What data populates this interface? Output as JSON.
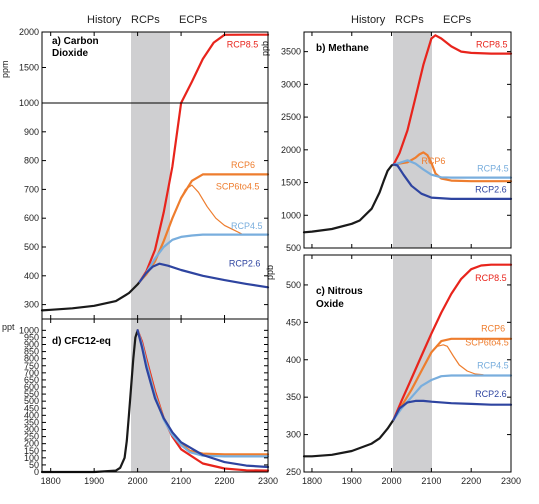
{
  "figure": {
    "period_labels": [
      "History",
      "RCPs",
      "ECPs"
    ],
    "x_ticks": [
      1800,
      1900,
      2000,
      2100,
      2200,
      2300
    ],
    "xlim": [
      1780,
      2300
    ],
    "rcp_band": [
      2000,
      2100
    ]
  },
  "chart_data": [
    {
      "type": "line",
      "id": "co2",
      "title": "a) Carbon Dioxide",
      "title_lines": [
        "a) Carbon",
        "Dioxide"
      ],
      "ylabel": "ppm",
      "broken_axis": true,
      "upper_segment": {
        "ylim": [
          1000,
          2000
        ],
        "ticks": [
          1000,
          1500,
          2000
        ]
      },
      "lower_segment": {
        "ylim": [
          250,
          1000
        ],
        "ticks": [
          300,
          400,
          500,
          600,
          700,
          800,
          900,
          1000
        ]
      },
      "xlim": [
        1780,
        2300
      ],
      "series": [
        {
          "name": "History",
          "color": "#1a1a1a",
          "labeled": false,
          "x": [
            1780,
            1800,
            1850,
            1900,
            1950,
            1980,
            2000,
            2005
          ],
          "y": [
            280,
            282,
            287,
            296,
            312,
            340,
            370,
            380
          ]
        },
        {
          "name": "RCP8.5",
          "color": "#e8241c",
          "x": [
            2005,
            2020,
            2040,
            2060,
            2080,
            2100,
            2125,
            2150,
            2175,
            2200,
            2250,
            2300
          ],
          "y": [
            380,
            415,
            490,
            620,
            780,
            1000,
            1300,
            1620,
            1850,
            1960,
            1962,
            1962
          ]
        },
        {
          "name": "RCP6",
          "color": "#ee7d2e",
          "x": [
            2005,
            2020,
            2040,
            2060,
            2080,
            2100,
            2125,
            2150,
            2200,
            2250,
            2300
          ],
          "y": [
            380,
            405,
            450,
            520,
            600,
            670,
            730,
            752,
            752,
            752,
            752
          ]
        },
        {
          "name": "SCP6to4.5",
          "color": "#ee7d2e",
          "x": [
            2100,
            2110,
            2125,
            2140,
            2160,
            2180,
            2200,
            2220,
            2240
          ],
          "y": [
            670,
            700,
            715,
            690,
            640,
            600,
            575,
            560,
            545
          ]
        },
        {
          "name": "RCP4.5",
          "color": "#79aedd",
          "x": [
            2005,
            2020,
            2040,
            2060,
            2080,
            2100,
            2125,
            2150,
            2200,
            2250,
            2300
          ],
          "y": [
            380,
            410,
            460,
            500,
            525,
            535,
            540,
            543,
            543,
            543,
            543
          ]
        },
        {
          "name": "RCP2.6",
          "color": "#2e44a0",
          "x": [
            2005,
            2020,
            2035,
            2050,
            2070,
            2100,
            2150,
            2200,
            2250,
            2300
          ],
          "y": [
            380,
            410,
            432,
            442,
            435,
            420,
            400,
            385,
            372,
            360
          ]
        }
      ],
      "labels": [
        {
          "text": "RCP8.5",
          "color": "#e8241c",
          "x": 2205,
          "y": 1780
        },
        {
          "text": "RCP6",
          "color": "#ee7d2e",
          "x": 2215,
          "y": 775
        },
        {
          "text": "SCP6to4.5",
          "color": "#ee7d2e",
          "x": 2180,
          "y": 700
        },
        {
          "text": "RCP4.5",
          "color": "#79aedd",
          "x": 2215,
          "y": 562
        },
        {
          "text": "RCP2.6",
          "color": "#2e44a0",
          "x": 2210,
          "y": 432
        }
      ]
    },
    {
      "type": "line",
      "id": "ch4",
      "title": "b) Methane",
      "title_lines": [
        "b) Methane"
      ],
      "ylabel": "ppb",
      "ylim": [
        500,
        3800
      ],
      "yticks": [
        500,
        1000,
        1500,
        2000,
        2500,
        3000,
        3500
      ],
      "xlim": [
        1780,
        2300
      ],
      "series": [
        {
          "name": "History",
          "color": "#1a1a1a",
          "labeled": false,
          "x": [
            1780,
            1800,
            1850,
            1900,
            1920,
            1950,
            1970,
            1980,
            1990,
            2000,
            2005
          ],
          "y": [
            740,
            750,
            790,
            870,
            920,
            1100,
            1350,
            1520,
            1680,
            1760,
            1775
          ]
        },
        {
          "name": "RCP8.5",
          "color": "#e8241c",
          "x": [
            2005,
            2020,
            2040,
            2060,
            2080,
            2100,
            2110,
            2125,
            2150,
            2175,
            2200,
            2250,
            2300
          ],
          "y": [
            1775,
            1950,
            2300,
            2800,
            3300,
            3700,
            3750,
            3700,
            3580,
            3500,
            3480,
            3470,
            3470
          ]
        },
        {
          "name": "RCP6",
          "color": "#ee7d2e",
          "x": [
            2005,
            2020,
            2040,
            2060,
            2070,
            2080,
            2090,
            2100,
            2110,
            2125,
            2150,
            2200,
            2250,
            2300
          ],
          "y": [
            1775,
            1790,
            1810,
            1880,
            1930,
            1960,
            1920,
            1800,
            1640,
            1560,
            1530,
            1520,
            1520,
            1520
          ]
        },
        {
          "name": "RCP4.5",
          "color": "#79aedd",
          "x": [
            2005,
            2020,
            2040,
            2060,
            2080,
            2100,
            2125,
            2150,
            2200,
            2250,
            2300
          ],
          "y": [
            1775,
            1800,
            1840,
            1790,
            1700,
            1620,
            1580,
            1575,
            1575,
            1575,
            1575
          ]
        },
        {
          "name": "RCP2.6",
          "color": "#2e44a0",
          "x": [
            2005,
            2015,
            2030,
            2050,
            2075,
            2100,
            2150,
            2200,
            2250,
            2300
          ],
          "y": [
            1775,
            1760,
            1620,
            1450,
            1330,
            1270,
            1250,
            1250,
            1250,
            1250
          ]
        }
      ],
      "labels": [
        {
          "text": "RCP8.5",
          "color": "#e8241c",
          "x": 2212,
          "y": 3560
        },
        {
          "text": "RCP6",
          "color": "#ee7d2e",
          "x": 2075,
          "y": 1780
        },
        {
          "text": "RCP4.5",
          "color": "#79aedd",
          "x": 2215,
          "y": 1665
        },
        {
          "text": "RCP2.6",
          "color": "#2e44a0",
          "x": 2210,
          "y": 1350
        }
      ]
    },
    {
      "type": "line",
      "id": "cfc12",
      "title": "d) CFC12-eq",
      "title_lines": [
        "d) CFC12-eq"
      ],
      "ylabel": "ppt",
      "ylim": [
        0,
        1080
      ],
      "yticks": [
        0,
        50,
        100,
        150,
        200,
        250,
        300,
        350,
        400,
        450,
        500,
        550,
        600,
        650,
        700,
        750,
        800,
        850,
        900,
        950,
        1000
      ],
      "xlim": [
        1780,
        2300
      ],
      "series": [
        {
          "name": "History",
          "color": "#1a1a1a",
          "labeled": false,
          "x": [
            1780,
            1900,
            1950,
            1960,
            1970,
            1975,
            1980,
            1985,
            1990,
            1995,
            2000
          ],
          "y": [
            0,
            0,
            10,
            30,
            100,
            220,
            400,
            600,
            800,
            950,
            1000
          ]
        },
        {
          "name": "RCP8.5",
          "color": "#e8241c",
          "x": [
            2000,
            2010,
            2020,
            2040,
            2060,
            2080,
            2100,
            2150,
            2200,
            2250,
            2300
          ],
          "y": [
            1000,
            920,
            800,
            570,
            380,
            250,
            160,
            60,
            25,
            12,
            10
          ]
        },
        {
          "name": "RCP6",
          "color": "#ee7d2e",
          "x": [
            2000,
            2010,
            2020,
            2040,
            2060,
            2080,
            2100,
            2120,
            2150,
            2200,
            2300
          ],
          "y": [
            1000,
            900,
            780,
            550,
            380,
            270,
            200,
            150,
            130,
            125,
            125
          ]
        },
        {
          "name": "RCP4.5",
          "color": "#79aedd",
          "x": [
            2000,
            2010,
            2020,
            2040,
            2060,
            2080,
            2100,
            2120,
            2150,
            2200,
            2300
          ],
          "y": [
            1000,
            900,
            770,
            540,
            370,
            260,
            190,
            140,
            115,
            110,
            110
          ]
        },
        {
          "name": "RCP2.6",
          "color": "#2e44a0",
          "x": [
            2000,
            2010,
            2020,
            2040,
            2060,
            2080,
            2100,
            2150,
            2200,
            2250,
            2300
          ],
          "y": [
            1000,
            880,
            740,
            520,
            380,
            280,
            210,
            120,
            70,
            45,
            35
          ]
        }
      ],
      "labels": []
    },
    {
      "type": "line",
      "id": "n2o",
      "title": "c) Nitrous Oxide",
      "title_lines": [
        "c) Nitrous",
        "Oxide"
      ],
      "ylabel": "ppb",
      "ylim": [
        250,
        540
      ],
      "yticks": [
        250,
        300,
        350,
        400,
        450,
        500
      ],
      "xlim": [
        1780,
        2300
      ],
      "series": [
        {
          "name": "History",
          "color": "#1a1a1a",
          "labeled": false,
          "x": [
            1780,
            1800,
            1850,
            1900,
            1950,
            1970,
            1990,
            2000,
            2005
          ],
          "y": [
            271,
            271,
            273,
            278,
            288,
            295,
            308,
            316,
            320
          ]
        },
        {
          "name": "RCP8.5",
          "color": "#e8241c",
          "x": [
            2005,
            2025,
            2050,
            2075,
            2100,
            2125,
            2150,
            2175,
            2200,
            2225,
            2250,
            2300
          ],
          "y": [
            320,
            345,
            375,
            405,
            435,
            463,
            488,
            508,
            521,
            526,
            527,
            527
          ]
        },
        {
          "name": "RCP6",
          "color": "#ee7d2e",
          "x": [
            2005,
            2025,
            2050,
            2075,
            2100,
            2125,
            2150,
            2200,
            2250,
            2300
          ],
          "y": [
            320,
            338,
            360,
            385,
            410,
            425,
            428,
            428,
            428,
            428
          ]
        },
        {
          "name": "SCP6to4.5",
          "color": "#ee7d2e",
          "x": [
            2100,
            2115,
            2130,
            2140,
            2155,
            2170,
            2190,
            2210,
            2230
          ],
          "y": [
            410,
            418,
            420,
            418,
            405,
            393,
            385,
            381,
            380
          ]
        },
        {
          "name": "RCP4.5",
          "color": "#79aedd",
          "x": [
            2005,
            2025,
            2050,
            2075,
            2100,
            2125,
            2150,
            2200,
            2250,
            2300
          ],
          "y": [
            320,
            335,
            350,
            365,
            373,
            378,
            379,
            379,
            379,
            379
          ]
        },
        {
          "name": "RCP2.6",
          "color": "#2e44a0",
          "x": [
            2005,
            2020,
            2040,
            2060,
            2080,
            2100,
            2150,
            2200,
            2250,
            2300
          ],
          "y": [
            320,
            335,
            343,
            345,
            345,
            344,
            342,
            341,
            340,
            340
          ]
        }
      ],
      "labels": [
        {
          "text": "RCP8.5",
          "color": "#e8241c",
          "x": 2210,
          "y": 505
        },
        {
          "text": "RCP6",
          "color": "#ee7d2e",
          "x": 2225,
          "y": 438
        },
        {
          "text": "SCP6to4.5",
          "color": "#ee7d2e",
          "x": 2185,
          "y": 419
        },
        {
          "text": "RCP4.5",
          "color": "#79aedd",
          "x": 2215,
          "y": 388
        },
        {
          "text": "RCP2.6",
          "color": "#2e44a0",
          "x": 2210,
          "y": 350
        }
      ]
    }
  ]
}
